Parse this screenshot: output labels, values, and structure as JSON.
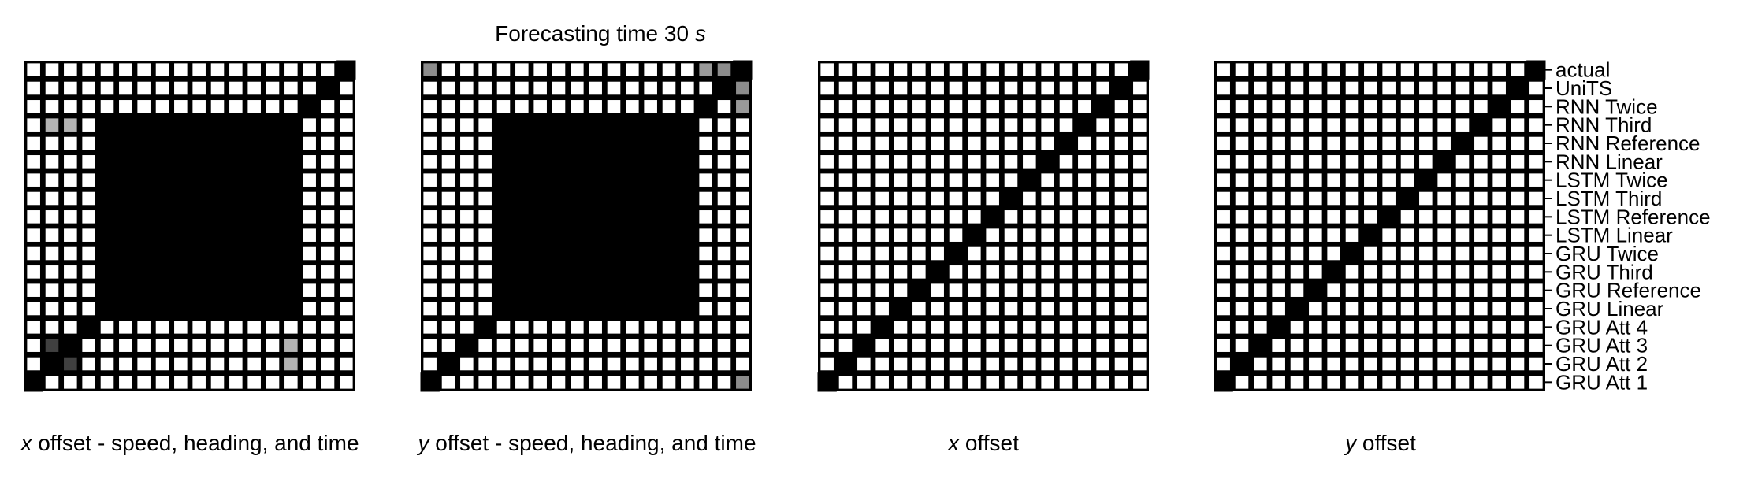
{
  "figure": {
    "title": "Forecasting time 30 s",
    "title_prefix": "Forecasting time 30",
    "title_unit": "s"
  },
  "chart_data": [
    {
      "type": "heatmap",
      "xlabel": "x offset - speed, heading, and time",
      "xlabel_var": "x",
      "xlabel_rest": "offset - speed, heading, and time",
      "size": 18,
      "matrix": [
        [
          1,
          0,
          0,
          0,
          0,
          0,
          0,
          0,
          0,
          0,
          0,
          0,
          0,
          0,
          0,
          0,
          0,
          0
        ],
        [
          0,
          1,
          0.75,
          0,
          0,
          0,
          0,
          0,
          0,
          0,
          0,
          0,
          0,
          0,
          0.3,
          0,
          0,
          0
        ],
        [
          0,
          0.75,
          1,
          0,
          0,
          0,
          0,
          0,
          0,
          0,
          0,
          0,
          0,
          0,
          0.3,
          0,
          0,
          0
        ],
        [
          0,
          0,
          0,
          1,
          0,
          0,
          0,
          0,
          0,
          0,
          0,
          0,
          0,
          0,
          0,
          0,
          0,
          0
        ],
        [
          0,
          0,
          0,
          0,
          1,
          1,
          1,
          1,
          1,
          1,
          1,
          1,
          1,
          1,
          1,
          0,
          0,
          0
        ],
        [
          0,
          0,
          0,
          0,
          1,
          1,
          1,
          1,
          1,
          1,
          1,
          1,
          1,
          1,
          1,
          0,
          0,
          0
        ],
        [
          0,
          0,
          0,
          0,
          1,
          1,
          1,
          1,
          1,
          1,
          1,
          1,
          1,
          1,
          1,
          0,
          0,
          0
        ],
        [
          0,
          0,
          0,
          0,
          1,
          1,
          1,
          1,
          1,
          1,
          1,
          1,
          1,
          1,
          1,
          0,
          0,
          0
        ],
        [
          0,
          0,
          0,
          0,
          1,
          1,
          1,
          1,
          1,
          1,
          1,
          1,
          1,
          1,
          1,
          0,
          0,
          0
        ],
        [
          0,
          0,
          0,
          0,
          1,
          1,
          1,
          1,
          1,
          1,
          1,
          1,
          1,
          1,
          1,
          0,
          0,
          0
        ],
        [
          0,
          0,
          0,
          0,
          1,
          1,
          1,
          1,
          1,
          1,
          1,
          1,
          1,
          1,
          1,
          0,
          0,
          0
        ],
        [
          0,
          0,
          0,
          0,
          1,
          1,
          1,
          1,
          1,
          1,
          1,
          1,
          1,
          1,
          1,
          0,
          0,
          0
        ],
        [
          0,
          0,
          0,
          0,
          1,
          1,
          1,
          1,
          1,
          1,
          1,
          1,
          1,
          1,
          1,
          0,
          0,
          0
        ],
        [
          0,
          0,
          0,
          0,
          1,
          1,
          1,
          1,
          1,
          1,
          1,
          1,
          1,
          1,
          1,
          0,
          0,
          0
        ],
        [
          0,
          0.3,
          0.3,
          0,
          1,
          1,
          1,
          1,
          1,
          1,
          1,
          1,
          1,
          1,
          1,
          0,
          0,
          0
        ],
        [
          0,
          0,
          0,
          0,
          0,
          0,
          0,
          0,
          0,
          0,
          0,
          0,
          0,
          0,
          0,
          1,
          0,
          0
        ],
        [
          0,
          0,
          0,
          0,
          0,
          0,
          0,
          0,
          0,
          0,
          0,
          0,
          0,
          0,
          0,
          0,
          1,
          0
        ],
        [
          0,
          0,
          0,
          0,
          0,
          0,
          0,
          0,
          0,
          0,
          0,
          0,
          0,
          0,
          0,
          0,
          0,
          1
        ]
      ]
    },
    {
      "type": "heatmap",
      "xlabel": "y offset - speed, heading, and time",
      "xlabel_var": "y",
      "xlabel_rest": "offset - speed, heading, and time",
      "size": 18,
      "matrix": [
        [
          1,
          0,
          0,
          0,
          0,
          0,
          0,
          0,
          0,
          0,
          0,
          0,
          0,
          0,
          0,
          0,
          0,
          0.45
        ],
        [
          0,
          1,
          0,
          0,
          0,
          0,
          0,
          0,
          0,
          0,
          0,
          0,
          0,
          0,
          0,
          0,
          0,
          0
        ],
        [
          0,
          0,
          1,
          0,
          0,
          0,
          0,
          0,
          0,
          0,
          0,
          0,
          0,
          0,
          0,
          0,
          0,
          0
        ],
        [
          0,
          0,
          0,
          1,
          0,
          0,
          0,
          0,
          0,
          0,
          0,
          0,
          0,
          0,
          0,
          0,
          0,
          0
        ],
        [
          0,
          0,
          0,
          0,
          1,
          1,
          1,
          1,
          1,
          1,
          1,
          1,
          1,
          1,
          1,
          0,
          0,
          0
        ],
        [
          0,
          0,
          0,
          0,
          1,
          1,
          1,
          1,
          1,
          1,
          1,
          1,
          1,
          1,
          1,
          0,
          0,
          0
        ],
        [
          0,
          0,
          0,
          0,
          1,
          1,
          1,
          1,
          1,
          1,
          1,
          1,
          1,
          1,
          1,
          0,
          0,
          0
        ],
        [
          0,
          0,
          0,
          0,
          1,
          1,
          1,
          1,
          1,
          1,
          1,
          1,
          1,
          1,
          1,
          0,
          0,
          0
        ],
        [
          0,
          0,
          0,
          0,
          1,
          1,
          1,
          1,
          1,
          1,
          1,
          1,
          1,
          1,
          1,
          0,
          0,
          0
        ],
        [
          0,
          0,
          0,
          0,
          1,
          1,
          1,
          1,
          1,
          1,
          1,
          1,
          1,
          1,
          1,
          0,
          0,
          0
        ],
        [
          0,
          0,
          0,
          0,
          1,
          1,
          1,
          1,
          1,
          1,
          1,
          1,
          1,
          1,
          1,
          0,
          0,
          0
        ],
        [
          0,
          0,
          0,
          0,
          1,
          1,
          1,
          1,
          1,
          1,
          1,
          1,
          1,
          1,
          1,
          0,
          0,
          0
        ],
        [
          0,
          0,
          0,
          0,
          1,
          1,
          1,
          1,
          1,
          1,
          1,
          1,
          1,
          1,
          1,
          0,
          0,
          0
        ],
        [
          0,
          0,
          0,
          0,
          1,
          1,
          1,
          1,
          1,
          1,
          1,
          1,
          1,
          1,
          1,
          0,
          0,
          0
        ],
        [
          0,
          0,
          0,
          0,
          1,
          1,
          1,
          1,
          1,
          1,
          1,
          1,
          1,
          1,
          1,
          0,
          0,
          0
        ],
        [
          0,
          0,
          0,
          0,
          0,
          0,
          0,
          0,
          0,
          0,
          0,
          0,
          0,
          0,
          0,
          1,
          0,
          0.4
        ],
        [
          0,
          0,
          0,
          0,
          0,
          0,
          0,
          0,
          0,
          0,
          0,
          0,
          0,
          0,
          0,
          0,
          1,
          0.45
        ],
        [
          0.45,
          0,
          0,
          0,
          0,
          0,
          0,
          0,
          0,
          0,
          0,
          0,
          0,
          0,
          0,
          0.4,
          0.45,
          1
        ]
      ]
    },
    {
      "type": "heatmap",
      "xlabel": "x offset",
      "xlabel_var": "x",
      "xlabel_rest": "offset",
      "size": 18,
      "matrix": "identity"
    },
    {
      "type": "heatmap",
      "xlabel": "y offset",
      "xlabel_var": "y",
      "xlabel_rest": "offset",
      "size": 18,
      "matrix": "identity",
      "ytick_labels": [
        "GRU Att 1",
        "GRU Att 2",
        "GRU Att 3",
        "GRU Att 4",
        "GRU Linear",
        "GRU Reference",
        "GRU Third",
        "GRU Twice",
        "LSTM Linear",
        "LSTM Reference",
        "LSTM Third",
        "LSTM Twice",
        "RNN Linear",
        "RNN Reference",
        "RNN Third",
        "RNN Twice",
        "UniTS",
        "actual"
      ]
    }
  ],
  "colors": {
    "high": "#000000",
    "low": "#ffffff"
  }
}
